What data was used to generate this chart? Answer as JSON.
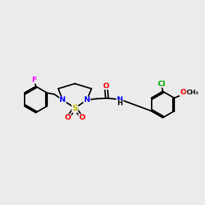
{
  "background_color": "#ebebeb",
  "fig_size": [
    3.0,
    3.0
  ],
  "dpi": 100,
  "atom_colors": {
    "C": "#000000",
    "N": "#0000ff",
    "S": "#bbbb00",
    "O": "#ff0000",
    "F": "#ff00ff",
    "Cl": "#00aa00",
    "H": "#000000"
  },
  "xlim": [
    -4.2,
    3.8
  ],
  "ylim": [
    -1.5,
    1.5
  ]
}
